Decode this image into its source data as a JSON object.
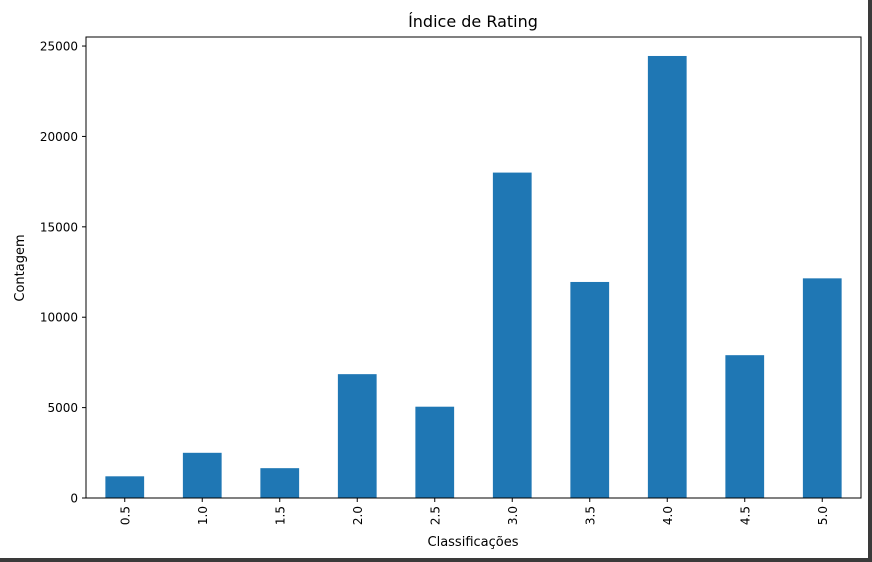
{
  "chart_data": {
    "type": "bar",
    "title": "Índice de Rating",
    "xlabel": "Classificações",
    "ylabel": "Contagem",
    "categories": [
      "0.5",
      "1.0",
      "1.5",
      "2.0",
      "2.5",
      "3.0",
      "3.5",
      "4.0",
      "4.5",
      "5.0"
    ],
    "values": [
      1200,
      2500,
      1650,
      6850,
      5050,
      18000,
      11950,
      24450,
      7900,
      12150
    ],
    "ylim": [
      0,
      25500
    ],
    "yticks": [
      0,
      5000,
      10000,
      15000,
      20000,
      25000
    ],
    "grid": false,
    "bar_color": "#1f77b4"
  }
}
